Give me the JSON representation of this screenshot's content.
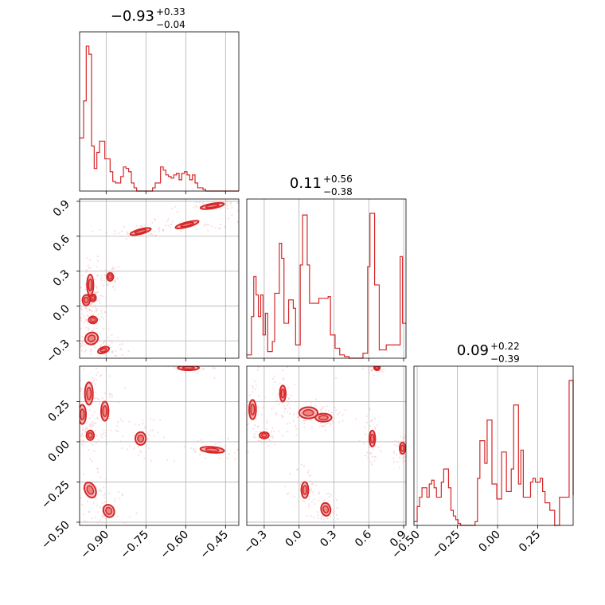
{
  "chart_data": {
    "type": "corner",
    "color": "#d62728",
    "parameters": [
      {
        "name": "",
        "title": {
          "median": "0.93",
          "sign": "−",
          "plus": "+0.33",
          "minus": "−0.04"
        },
        "range": [
          -1.0,
          -0.4
        ],
        "ticks": [
          -0.9,
          -0.75,
          -0.6,
          -0.45
        ],
        "tick_labels": [
          "−0.90",
          "−0.75",
          "−0.60",
          "−0.45"
        ],
        "histogram": {
          "bins": [
            -1.0,
            -0.985,
            -0.975,
            -0.965,
            -0.955,
            -0.945,
            -0.935,
            -0.925,
            -0.915,
            -0.905,
            -0.895,
            -0.885,
            -0.875,
            -0.865,
            -0.855,
            -0.845,
            -0.835,
            -0.825,
            -0.815,
            -0.805,
            -0.795,
            -0.785,
            -0.775,
            -0.765,
            -0.755,
            -0.745,
            -0.735,
            -0.725,
            -0.715,
            -0.705,
            -0.695,
            -0.685,
            -0.675,
            -0.665,
            -0.655,
            -0.645,
            -0.635,
            -0.625,
            -0.615,
            -0.605,
            -0.595,
            -0.585,
            -0.575,
            -0.565,
            -0.555,
            -0.545,
            -0.535,
            -0.525,
            -0.515,
            -0.505,
            -0.495,
            -0.485,
            -0.475,
            -0.465,
            -0.455,
            -0.445,
            -0.435,
            -0.425,
            -0.415,
            -0.4
          ],
          "counts": [
            0.33,
            0.56,
            0.9,
            0.85,
            0.28,
            0.14,
            0.24,
            0.31,
            0.31,
            0.2,
            0.2,
            0.12,
            0.06,
            0.05,
            0.05,
            0.09,
            0.15,
            0.14,
            0.12,
            0.05,
            0.02,
            0.0,
            0.0,
            0.0,
            0.0,
            0.0,
            0.0,
            0.02,
            0.05,
            0.05,
            0.15,
            0.13,
            0.1,
            0.09,
            0.08,
            0.1,
            0.11,
            0.07,
            0.11,
            0.12,
            0.1,
            0.07,
            0.1,
            0.05,
            0.02,
            0.02,
            0.01,
            0.0,
            0.0,
            0.0,
            0.0,
            0.0,
            0.0,
            0.0,
            0.0,
            0.0,
            0.0,
            0.0,
            0.0
          ]
        }
      },
      {
        "name": "",
        "title": {
          "median": "0.11",
          "sign": "",
          "plus": "+0.56",
          "minus": "−0.38"
        },
        "range": [
          -0.45,
          0.92
        ],
        "ticks": [
          -0.3,
          0.0,
          0.3,
          0.6,
          0.9
        ],
        "tick_labels": [
          "−0.3",
          "0.0",
          "0.3",
          "0.6",
          "0.9"
        ],
        "histogram": {
          "bins": [
            -0.45,
            -0.43,
            -0.41,
            -0.39,
            -0.37,
            -0.35,
            -0.33,
            -0.31,
            -0.29,
            -0.27,
            -0.25,
            -0.23,
            -0.21,
            -0.19,
            -0.17,
            -0.15,
            -0.13,
            -0.11,
            -0.09,
            -0.07,
            -0.05,
            -0.03,
            -0.01,
            0.01,
            0.03,
            0.05,
            0.07,
            0.09,
            0.11,
            0.13,
            0.15,
            0.17,
            0.19,
            0.21,
            0.23,
            0.25,
            0.27,
            0.29,
            0.31,
            0.33,
            0.35,
            0.37,
            0.39,
            0.41,
            0.43,
            0.45,
            0.47,
            0.49,
            0.51,
            0.53,
            0.55,
            0.57,
            0.59,
            0.61,
            0.63,
            0.65,
            0.67,
            0.69,
            0.71,
            0.73,
            0.75,
            0.77,
            0.79,
            0.81,
            0.83,
            0.85,
            0.87,
            0.89,
            0.92
          ],
          "counts": [
            0.02,
            0.02,
            0.25,
            0.49,
            0.38,
            0.25,
            0.38,
            0.14,
            0.27,
            0.04,
            0.04,
            0.1,
            0.39,
            0.39,
            0.69,
            0.6,
            0.21,
            0.21,
            0.35,
            0.35,
            0.3,
            0.08,
            0.08,
            0.56,
            0.86,
            0.86,
            0.56,
            0.33,
            0.33,
            0.33,
            0.33,
            0.36,
            0.36,
            0.36,
            0.36,
            0.37,
            0.14,
            0.14,
            0.06,
            0.06,
            0.02,
            0.02,
            0.01,
            0.01,
            0.0,
            0.0,
            0.0,
            0.0,
            0.0,
            0.0,
            0.03,
            0.03,
            0.55,
            0.87,
            0.87,
            0.44,
            0.44,
            0.05,
            0.05,
            0.05,
            0.08,
            0.08,
            0.08,
            0.08,
            0.08,
            0.08,
            0.61,
            0.21
          ]
        }
      },
      {
        "name": "",
        "title": {
          "median": "0.09",
          "sign": "",
          "plus": "+0.22",
          "minus": "−0.39"
        },
        "range": [
          -0.52,
          0.47
        ],
        "ticks": [
          -0.5,
          -0.25,
          0.0,
          0.25
        ],
        "tick_labels": [
          "−0.50",
          "−0.25",
          "0.00",
          "0.25"
        ],
        "histogram": {
          "bins": [
            -0.52,
            -0.5,
            -0.485,
            -0.47,
            -0.455,
            -0.44,
            -0.425,
            -0.41,
            -0.395,
            -0.38,
            -0.365,
            -0.35,
            -0.335,
            -0.32,
            -0.305,
            -0.29,
            -0.275,
            -0.26,
            -0.245,
            -0.23,
            -0.215,
            -0.2,
            -0.185,
            -0.17,
            -0.155,
            -0.14,
            -0.125,
            -0.11,
            -0.095,
            -0.08,
            -0.065,
            -0.05,
            -0.035,
            -0.02,
            -0.005,
            0.01,
            0.025,
            0.04,
            0.055,
            0.07,
            0.085,
            0.1,
            0.115,
            0.13,
            0.145,
            0.16,
            0.175,
            0.19,
            0.205,
            0.22,
            0.235,
            0.25,
            0.265,
            0.28,
            0.295,
            0.31,
            0.325,
            0.34,
            0.355,
            0.37,
            0.385,
            0.4,
            0.415,
            0.43,
            0.445,
            0.47
          ],
          "counts": [
            0.02,
            0.1,
            0.15,
            0.2,
            0.2,
            0.15,
            0.22,
            0.24,
            0.2,
            0.15,
            0.15,
            0.23,
            0.3,
            0.3,
            0.2,
            0.08,
            0.05,
            0.03,
            0.01,
            0.0,
            0.0,
            0.0,
            0.0,
            0.0,
            0.0,
            0.02,
            0.25,
            0.45,
            0.45,
            0.33,
            0.56,
            0.56,
            0.22,
            0.22,
            0.14,
            0.14,
            0.39,
            0.39,
            0.18,
            0.18,
            0.3,
            0.64,
            0.64,
            0.22,
            0.4,
            0.15,
            0.15,
            0.15,
            0.23,
            0.25,
            0.23,
            0.23,
            0.25,
            0.18,
            0.12,
            0.12,
            0.08,
            0.08,
            0.0,
            0.0,
            0.15,
            0.15,
            0.15,
            0.15,
            0.77,
            0.16
          ]
        }
      }
    ],
    "pairs": [
      {
        "x_param": 0,
        "y_param": 1,
        "clusters": [
          {
            "x": -0.96,
            "y": 0.18,
            "sx": 0.012,
            "sy": 0.09,
            "r": 0
          },
          {
            "x": -0.975,
            "y": 0.05,
            "sx": 0.014,
            "sy": 0.045,
            "r": 0
          },
          {
            "x": -0.95,
            "y": 0.07,
            "sx": 0.012,
            "sy": 0.03,
            "r": 0
          },
          {
            "x": -0.885,
            "y": 0.25,
            "sx": 0.012,
            "sy": 0.035,
            "r": 0
          },
          {
            "x": -0.95,
            "y": -0.12,
            "sx": 0.016,
            "sy": 0.03,
            "r": 0
          },
          {
            "x": -0.955,
            "y": -0.28,
            "sx": 0.025,
            "sy": 0.05,
            "r": -25
          },
          {
            "x": -0.91,
            "y": -0.38,
            "sx": 0.022,
            "sy": 0.025,
            "r": -20
          },
          {
            "x": -0.77,
            "y": 0.64,
            "sx": 0.04,
            "sy": 0.015,
            "r": -15
          },
          {
            "x": -0.595,
            "y": 0.7,
            "sx": 0.045,
            "sy": 0.015,
            "r": -15
          },
          {
            "x": -0.5,
            "y": 0.86,
            "sx": 0.045,
            "sy": 0.015,
            "r": -10
          }
        ]
      },
      {
        "x_param": 0,
        "y_param": 2,
        "clusters": [
          {
            "x": -0.965,
            "y": 0.3,
            "sx": 0.015,
            "sy": 0.07,
            "r": 0
          },
          {
            "x": -0.99,
            "y": 0.17,
            "sx": 0.014,
            "sy": 0.06,
            "r": 0
          },
          {
            "x": -0.96,
            "y": 0.04,
            "sx": 0.014,
            "sy": 0.03,
            "r": 0
          },
          {
            "x": -0.905,
            "y": 0.19,
            "sx": 0.014,
            "sy": 0.06,
            "r": 0
          },
          {
            "x": -0.96,
            "y": -0.3,
            "sx": 0.02,
            "sy": 0.05,
            "r": -25
          },
          {
            "x": -0.89,
            "y": -0.43,
            "sx": 0.02,
            "sy": 0.04,
            "r": -25
          },
          {
            "x": -0.77,
            "y": 0.02,
            "sx": 0.02,
            "sy": 0.04,
            "r": 0
          },
          {
            "x": -0.59,
            "y": 0.46,
            "sx": 0.04,
            "sy": 0.012,
            "r": 0
          },
          {
            "x": -0.5,
            "y": -0.05,
            "sx": 0.045,
            "sy": 0.018,
            "r": 5
          }
        ]
      },
      {
        "x_param": 1,
        "y_param": 2,
        "clusters": [
          {
            "x": -0.4,
            "y": 0.2,
            "sx": 0.03,
            "sy": 0.06,
            "r": 0
          },
          {
            "x": -0.3,
            "y": 0.04,
            "sx": 0.04,
            "sy": 0.02,
            "r": 0
          },
          {
            "x": -0.14,
            "y": 0.3,
            "sx": 0.025,
            "sy": 0.05,
            "r": 0
          },
          {
            "x": 0.08,
            "y": 0.18,
            "sx": 0.08,
            "sy": 0.035,
            "r": 0
          },
          {
            "x": 0.21,
            "y": 0.15,
            "sx": 0.07,
            "sy": 0.025,
            "r": 0
          },
          {
            "x": 0.05,
            "y": -0.3,
            "sx": 0.03,
            "sy": 0.05,
            "r": 0
          },
          {
            "x": 0.23,
            "y": -0.42,
            "sx": 0.04,
            "sy": 0.04,
            "r": -10
          },
          {
            "x": 0.63,
            "y": 0.02,
            "sx": 0.025,
            "sy": 0.05,
            "r": 0
          },
          {
            "x": 0.67,
            "y": 0.46,
            "sx": 0.025,
            "sy": 0.012,
            "r": 0
          },
          {
            "x": 0.89,
            "y": -0.04,
            "sx": 0.025,
            "sy": 0.035,
            "r": 0
          }
        ]
      }
    ]
  }
}
